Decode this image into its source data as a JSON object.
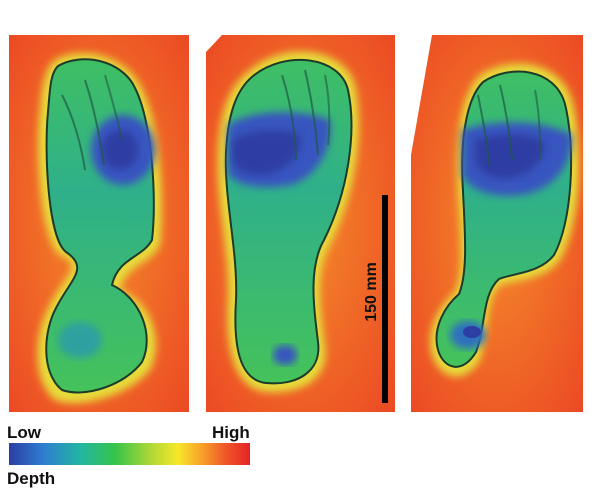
{
  "figure": {
    "panels": [
      {
        "name": "footprint-left",
        "description_icon": "footprint-depth-map"
      },
      {
        "name": "footprint-center",
        "description_icon": "footprint-depth-map"
      },
      {
        "name": "footprint-right",
        "description_icon": "footprint-depth-map"
      }
    ],
    "scale_bar": {
      "label": "150 mm"
    },
    "colorbar": {
      "low_label": "Low",
      "high_label": "High",
      "title": "Depth",
      "colors": [
        "#2d3da3",
        "#2e7dd1",
        "#22b7a0",
        "#35c44a",
        "#a9d636",
        "#f7e82a",
        "#f7a128",
        "#f05528",
        "#e32426"
      ]
    }
  }
}
